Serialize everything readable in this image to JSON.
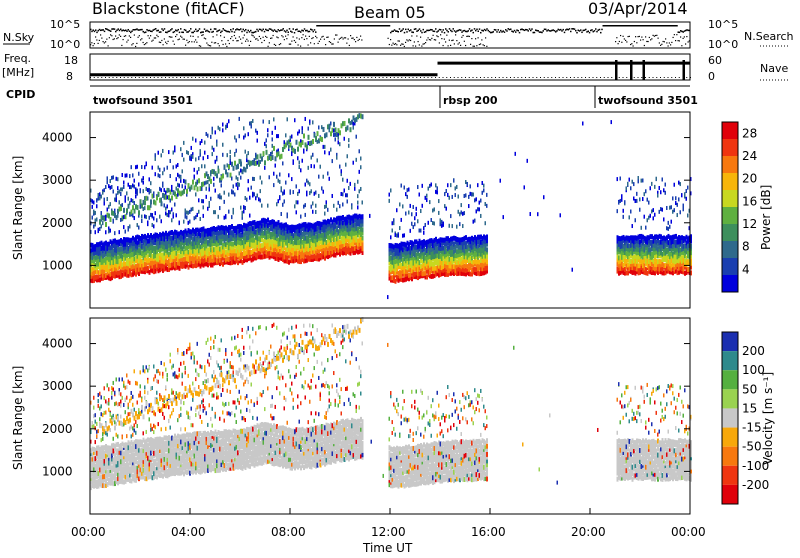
{
  "header": {
    "station": "Blackstone (fitACF)",
    "beam": "Beam 05",
    "date": "03/Apr/2014"
  },
  "top_panels": {
    "nsky_label": "N.Sky",
    "nsky_ticks": [
      "10^5",
      "10^0"
    ],
    "nsearch_label": "N.Search",
    "nsearch_ticks": [
      "10^5",
      "10^0"
    ],
    "freq_label": "Freq.",
    "freq_unit": "[MHz]",
    "freq_ticks": [
      "18",
      "8"
    ],
    "nave_label": "Nave",
    "nave_ticks": [
      "60",
      "0"
    ],
    "cpid_label": "CPID",
    "cpid_segments": [
      {
        "label": "twofsound 3501",
        "start": 0.0,
        "end": 14.0
      },
      {
        "label": "rbsp 200",
        "start": 14.0,
        "end": 20.2
      },
      {
        "label": "twofsound 3501",
        "start": 20.2,
        "end": 24.0
      }
    ],
    "freq_steps": [
      {
        "start": 0.0,
        "end": 13.9,
        "value": 10
      },
      {
        "start": 13.9,
        "end": 20.0,
        "value": 14.5
      },
      {
        "start": 20.0,
        "end": 24.0,
        "value": 14.5
      }
    ]
  },
  "chart_data": [
    {
      "type": "heatmap",
      "title": "",
      "ylabel": "Slant Range [km]",
      "xlabel": "",
      "xlim": [
        0,
        24
      ],
      "ylim": [
        0,
        4600
      ],
      "yticks": [
        "1000",
        "2000",
        "3000",
        "4000"
      ],
      "colorbar_label": "Power [dB]",
      "colorbar_ticks": [
        "4",
        "8",
        "12",
        "16",
        "20",
        "24",
        "28"
      ],
      "colorbar_range": [
        0,
        30
      ],
      "colorbar_colors": [
        "#0000dd",
        "#1a3fb0",
        "#2f6a8c",
        "#3d8f5c",
        "#5fb040",
        "#c8d820",
        "#f7b50a",
        "#f7780e",
        "#ef3510",
        "#e0000a"
      ],
      "data_gaps": [
        [
          10.9,
          11.9
        ],
        [
          15.9,
          21.0
        ]
      ],
      "echo_band": [
        {
          "t": 0.0,
          "range": 900
        },
        {
          "t": 1.0,
          "range": 1000
        },
        {
          "t": 2.0,
          "range": 1100
        },
        {
          "t": 4.0,
          "range": 1250
        },
        {
          "t": 6.0,
          "range": 1350
        },
        {
          "t": 7.0,
          "range": 1500
        },
        {
          "t": 8.0,
          "range": 1350
        },
        {
          "t": 9.0,
          "range": 1400
        },
        {
          "t": 10.0,
          "range": 1550
        },
        {
          "t": 10.8,
          "range": 1600
        },
        {
          "t": 12.0,
          "range": 900
        },
        {
          "t": 14.0,
          "range": 1050
        },
        {
          "t": 15.8,
          "range": 1100
        },
        {
          "t": 21.0,
          "range": 1100
        },
        {
          "t": 24.0,
          "range": 1100
        }
      ]
    },
    {
      "type": "heatmap",
      "title": "",
      "ylabel": "Slant Range [km]",
      "xlabel": "Time UT",
      "xlim": [
        0,
        24
      ],
      "ylim": [
        0,
        4600
      ],
      "yticks": [
        "1000",
        "2000",
        "3000",
        "4000"
      ],
      "xticks": [
        "00:00",
        "04:00",
        "08:00",
        "12:00",
        "16:00",
        "20:00",
        "00:00"
      ],
      "colorbar_label": "Velocity [m s⁻¹]",
      "colorbar_ticks": [
        "200",
        "100",
        "50",
        "15",
        "-15",
        "-50",
        "-100",
        "-200"
      ],
      "colorbar_colors": [
        "#1b2fb0",
        "#2f8a8c",
        "#55b040",
        "#9ad350",
        "#c8c8c8",
        "#f7a80a",
        "#f7780e",
        "#ef3510",
        "#e0000a"
      ]
    }
  ]
}
